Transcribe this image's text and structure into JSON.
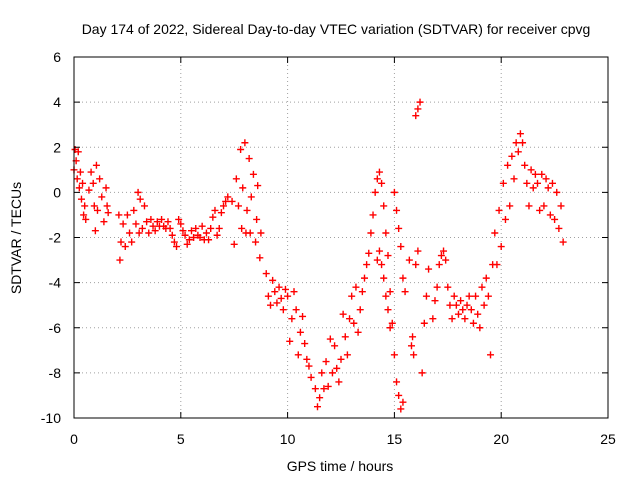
{
  "chart_data": {
    "type": "scatter",
    "title": "Day 174 of 2022, Sidereal Day-to-day VTEC variation (SDTVAR) for receiver cpvg",
    "xlabel": "GPS time / hours",
    "ylabel": "SDTVAR / TECUs",
    "xlim": [
      0,
      25
    ],
    "ylim": [
      -10,
      6
    ],
    "xticks": [
      0,
      5,
      10,
      15,
      20,
      25
    ],
    "yticks": [
      -10,
      -8,
      -6,
      -4,
      -2,
      0,
      2,
      4,
      6
    ],
    "xtick_labels": [
      "0",
      "5",
      "10",
      "15",
      "20",
      "25"
    ],
    "ytick_labels": [
      "-10",
      "-8",
      "-6",
      "-4",
      "-2",
      "0",
      "2",
      "4",
      "6"
    ],
    "grid": true,
    "marker": "+",
    "color": "#ff0000",
    "series": [
      {
        "name": "cpvg",
        "points": [
          [
            0.0,
            1.0
          ],
          [
            0.05,
            1.9
          ],
          [
            0.1,
            1.4
          ],
          [
            0.15,
            0.6
          ],
          [
            0.2,
            1.8
          ],
          [
            0.25,
            0.2
          ],
          [
            0.3,
            0.9
          ],
          [
            0.35,
            -0.3
          ],
          [
            0.4,
            0.4
          ],
          [
            0.45,
            -1.0
          ],
          [
            0.5,
            -0.6
          ],
          [
            0.55,
            -1.2
          ],
          [
            0.7,
            0.1
          ],
          [
            0.8,
            0.9
          ],
          [
            0.9,
            0.4
          ],
          [
            0.95,
            -0.6
          ],
          [
            1.0,
            -1.7
          ],
          [
            1.05,
            1.2
          ],
          [
            1.1,
            -0.8
          ],
          [
            1.2,
            0.6
          ],
          [
            1.3,
            -0.2
          ],
          [
            1.4,
            -1.3
          ],
          [
            1.5,
            0.2
          ],
          [
            1.55,
            -0.6
          ],
          [
            1.6,
            -0.9
          ],
          [
            2.1,
            -1.0
          ],
          [
            2.15,
            -3.0
          ],
          [
            2.2,
            -2.2
          ],
          [
            2.3,
            -1.4
          ],
          [
            2.4,
            -2.4
          ],
          [
            2.5,
            -1.0
          ],
          [
            2.6,
            -1.8
          ],
          [
            2.7,
            -2.2
          ],
          [
            2.8,
            -0.8
          ],
          [
            2.9,
            -1.4
          ],
          [
            3.0,
            0.0
          ],
          [
            3.05,
            -1.8
          ],
          [
            3.1,
            -0.3
          ],
          [
            3.2,
            -1.6
          ],
          [
            3.3,
            -0.6
          ],
          [
            3.4,
            -1.3
          ],
          [
            3.5,
            -1.8
          ],
          [
            3.6,
            -1.2
          ],
          [
            3.7,
            -1.5
          ],
          [
            3.8,
            -1.7
          ],
          [
            3.9,
            -1.3
          ],
          [
            4.0,
            -1.5
          ],
          [
            4.1,
            -1.2
          ],
          [
            4.2,
            -1.5
          ],
          [
            4.3,
            -1.6
          ],
          [
            4.4,
            -1.3
          ],
          [
            4.5,
            -1.6
          ],
          [
            4.6,
            -1.9
          ],
          [
            4.7,
            -2.2
          ],
          [
            4.8,
            -2.4
          ],
          [
            4.9,
            -1.2
          ],
          [
            5.0,
            -1.4
          ],
          [
            5.1,
            -1.7
          ],
          [
            5.2,
            -1.9
          ],
          [
            5.3,
            -2.3
          ],
          [
            5.4,
            -2.1
          ],
          [
            5.5,
            -1.7
          ],
          [
            5.6,
            -2.0
          ],
          [
            5.7,
            -1.6
          ],
          [
            5.8,
            -1.9
          ],
          [
            5.9,
            -2.0
          ],
          [
            6.0,
            -1.5
          ],
          [
            6.1,
            -2.1
          ],
          [
            6.2,
            -1.8
          ],
          [
            6.3,
            -2.1
          ],
          [
            6.4,
            -1.6
          ],
          [
            6.5,
            -1.1
          ],
          [
            6.6,
            -0.8
          ],
          [
            6.7,
            -1.9
          ],
          [
            6.8,
            -1.6
          ],
          [
            6.9,
            -0.9
          ],
          [
            7.0,
            -0.6
          ],
          [
            7.1,
            -0.4
          ],
          [
            7.2,
            -0.2
          ],
          [
            7.4,
            -0.4
          ],
          [
            7.5,
            -2.3
          ],
          [
            7.6,
            0.6
          ],
          [
            7.7,
            -0.6
          ],
          [
            7.8,
            1.9
          ],
          [
            7.85,
            -1.6
          ],
          [
            7.9,
            0.2
          ],
          [
            8.0,
            2.2
          ],
          [
            8.05,
            -1.8
          ],
          [
            8.1,
            -0.8
          ],
          [
            8.2,
            1.5
          ],
          [
            8.25,
            -1.8
          ],
          [
            8.3,
            -0.2
          ],
          [
            8.4,
            0.8
          ],
          [
            8.5,
            -2.2
          ],
          [
            8.55,
            -1.2
          ],
          [
            8.6,
            0.3
          ],
          [
            8.7,
            -2.9
          ],
          [
            8.75,
            -1.8
          ],
          [
            9.0,
            -3.6
          ],
          [
            9.1,
            -4.6
          ],
          [
            9.2,
            -5.0
          ],
          [
            9.3,
            -3.9
          ],
          [
            9.4,
            -4.4
          ],
          [
            9.5,
            -4.9
          ],
          [
            9.6,
            -4.2
          ],
          [
            9.7,
            -4.7
          ],
          [
            9.8,
            -5.2
          ],
          [
            9.9,
            -4.3
          ],
          [
            10.0,
            -4.6
          ],
          [
            10.1,
            -6.6
          ],
          [
            10.2,
            -5.6
          ],
          [
            10.3,
            -4.4
          ],
          [
            10.4,
            -5.2
          ],
          [
            10.5,
            -7.2
          ],
          [
            10.6,
            -6.2
          ],
          [
            10.7,
            -5.5
          ],
          [
            10.8,
            -6.7
          ],
          [
            10.9,
            -7.4
          ],
          [
            11.0,
            -7.7
          ],
          [
            11.1,
            -8.2
          ],
          [
            11.3,
            -8.7
          ],
          [
            11.4,
            -9.5
          ],
          [
            11.5,
            -9.1
          ],
          [
            11.6,
            -8.0
          ],
          [
            11.7,
            -8.7
          ],
          [
            11.8,
            -7.5
          ],
          [
            11.9,
            -8.6
          ],
          [
            12.0,
            -6.5
          ],
          [
            12.1,
            -8.0
          ],
          [
            12.2,
            -6.8
          ],
          [
            12.3,
            -7.8
          ],
          [
            12.4,
            -8.4
          ],
          [
            12.5,
            -7.4
          ],
          [
            12.6,
            -5.4
          ],
          [
            12.7,
            -6.4
          ],
          [
            12.8,
            -7.2
          ],
          [
            12.9,
            -5.6
          ],
          [
            13.0,
            -4.6
          ],
          [
            13.1,
            -5.8
          ],
          [
            13.2,
            -4.2
          ],
          [
            13.3,
            -6.2
          ],
          [
            13.4,
            -5.2
          ],
          [
            13.5,
            -4.4
          ],
          [
            13.6,
            -3.8
          ],
          [
            13.7,
            -3.2
          ],
          [
            13.8,
            -2.7
          ],
          [
            13.9,
            -1.8
          ],
          [
            14.0,
            -1.0
          ],
          [
            14.1,
            0.0
          ],
          [
            14.2,
            0.6
          ],
          [
            14.3,
            0.9
          ],
          [
            14.4,
            0.4
          ],
          [
            14.5,
            -0.6
          ],
          [
            14.6,
            -1.8
          ],
          [
            14.7,
            -2.8
          ],
          [
            14.8,
            -4.4
          ],
          [
            14.9,
            -5.8
          ],
          [
            15.0,
            -7.2
          ],
          [
            15.1,
            -8.4
          ],
          [
            15.2,
            -9.0
          ],
          [
            15.3,
            -9.6
          ],
          [
            15.4,
            -9.3
          ],
          [
            14.2,
            -3.0
          ],
          [
            14.3,
            -2.6
          ],
          [
            14.4,
            -3.2
          ],
          [
            14.5,
            -3.8
          ],
          [
            14.6,
            -4.6
          ],
          [
            14.7,
            -5.2
          ],
          [
            14.8,
            -6.0
          ],
          [
            15.0,
            0.0
          ],
          [
            15.1,
            -0.8
          ],
          [
            15.2,
            -1.6
          ],
          [
            15.3,
            -2.4
          ],
          [
            15.4,
            -3.8
          ],
          [
            15.5,
            -4.4
          ],
          [
            15.7,
            -3.0
          ],
          [
            15.8,
            -6.8
          ],
          [
            15.85,
            -6.4
          ],
          [
            15.9,
            -7.2
          ],
          [
            16.0,
            -3.2
          ],
          [
            16.1,
            -2.6
          ],
          [
            16.0,
            3.4
          ],
          [
            16.1,
            3.7
          ],
          [
            16.2,
            4.0
          ],
          [
            16.3,
            -8.0
          ],
          [
            16.4,
            -5.8
          ],
          [
            16.5,
            -4.6
          ],
          [
            16.6,
            -3.4
          ],
          [
            16.8,
            -5.6
          ],
          [
            16.9,
            -4.8
          ],
          [
            17.0,
            -4.2
          ],
          [
            17.1,
            -3.2
          ],
          [
            17.2,
            -2.8
          ],
          [
            17.3,
            -2.6
          ],
          [
            17.4,
            -3.0
          ],
          [
            17.5,
            -4.2
          ],
          [
            17.6,
            -5.0
          ],
          [
            17.7,
            -5.6
          ],
          [
            17.8,
            -4.6
          ],
          [
            17.9,
            -5.0
          ],
          [
            18.0,
            -5.4
          ],
          [
            18.1,
            -4.8
          ],
          [
            18.2,
            -5.2
          ],
          [
            18.3,
            -5.6
          ],
          [
            18.4,
            -5.0
          ],
          [
            18.5,
            -4.6
          ],
          [
            18.6,
            -5.2
          ],
          [
            18.7,
            -5.8
          ],
          [
            18.8,
            -4.6
          ],
          [
            18.9,
            -5.4
          ],
          [
            19.0,
            -6.0
          ],
          [
            19.1,
            -4.2
          ],
          [
            19.2,
            -5.0
          ],
          [
            19.3,
            -3.8
          ],
          [
            19.4,
            -4.6
          ],
          [
            19.5,
            -7.2
          ],
          [
            19.6,
            -3.2
          ],
          [
            19.7,
            -1.8
          ],
          [
            19.8,
            -3.2
          ],
          [
            19.9,
            -0.8
          ],
          [
            20.0,
            -2.4
          ],
          [
            20.1,
            0.4
          ],
          [
            20.2,
            -1.2
          ],
          [
            20.3,
            1.2
          ],
          [
            20.4,
            -0.6
          ],
          [
            20.5,
            1.6
          ],
          [
            20.6,
            0.6
          ],
          [
            20.7,
            2.2
          ],
          [
            20.8,
            1.8
          ],
          [
            20.9,
            2.6
          ],
          [
            21.0,
            2.2
          ],
          [
            21.1,
            1.2
          ],
          [
            21.2,
            0.4
          ],
          [
            21.3,
            -0.6
          ],
          [
            21.4,
            1.0
          ],
          [
            21.5,
            0.2
          ],
          [
            21.6,
            0.8
          ],
          [
            21.7,
            0.4
          ],
          [
            21.8,
            -0.8
          ],
          [
            21.9,
            0.8
          ],
          [
            22.0,
            -0.6
          ],
          [
            22.1,
            0.6
          ],
          [
            22.2,
            0.2
          ],
          [
            22.3,
            -1.0
          ],
          [
            22.4,
            0.4
          ],
          [
            22.5,
            -1.2
          ],
          [
            22.6,
            0.0
          ],
          [
            22.7,
            -1.6
          ],
          [
            22.8,
            -0.6
          ],
          [
            22.9,
            -2.2
          ]
        ]
      }
    ]
  }
}
